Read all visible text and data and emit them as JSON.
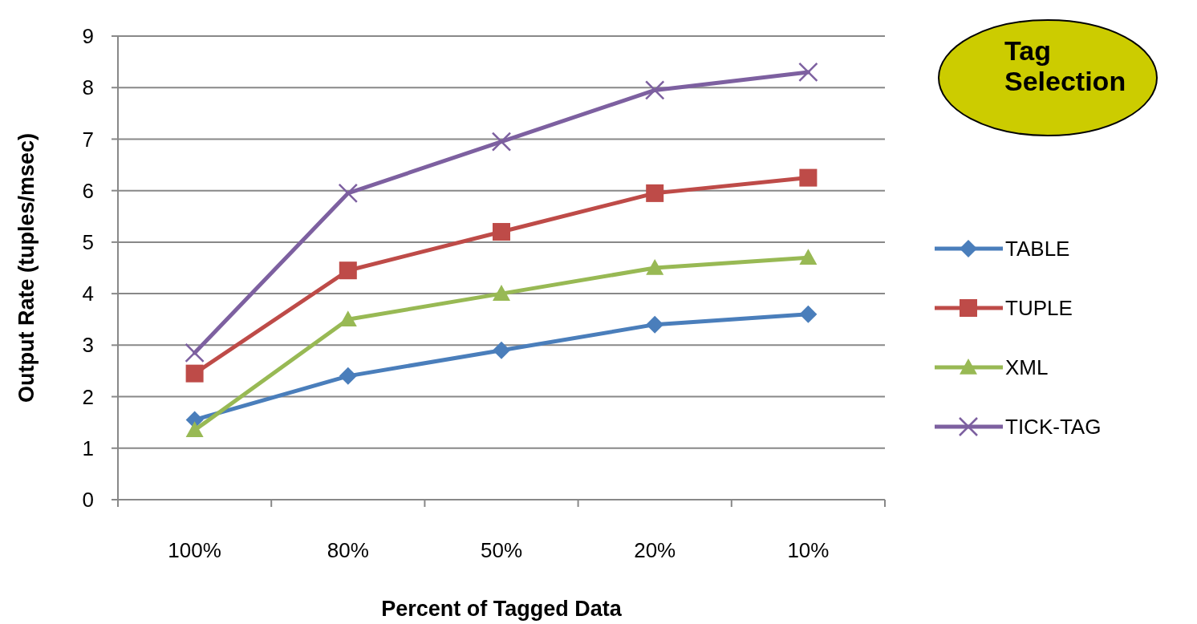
{
  "chart_data": {
    "type": "line",
    "title": "Tag Selection",
    "xlabel": "Percent of Tagged Data",
    "ylabel": "Output Rate (tuples/msec)",
    "categories": [
      "100%",
      "80%",
      "50%",
      "20%",
      "10%"
    ],
    "series": [
      {
        "name": "TABLE",
        "color": "#4a7ebb",
        "marker": "diamond",
        "values": [
          1.55,
          2.4,
          2.9,
          3.4,
          3.6
        ]
      },
      {
        "name": "TUPLE",
        "color": "#be4b48",
        "marker": "square",
        "values": [
          2.45,
          4.45,
          5.2,
          5.95,
          6.25
        ]
      },
      {
        "name": "XML",
        "color": "#98b954",
        "marker": "triangle",
        "values": [
          1.35,
          3.5,
          4.0,
          4.5,
          4.7
        ]
      },
      {
        "name": "TICK-TAG",
        "color": "#7d60a0",
        "marker": "cross",
        "values": [
          2.85,
          5.95,
          6.95,
          7.95,
          8.3
        ]
      }
    ],
    "ylim": [
      0,
      9
    ],
    "yticks": [
      0,
      1,
      2,
      3,
      4,
      5,
      6,
      7,
      8,
      9
    ],
    "grid": "y",
    "legend": "right",
    "line_style": "solid"
  }
}
